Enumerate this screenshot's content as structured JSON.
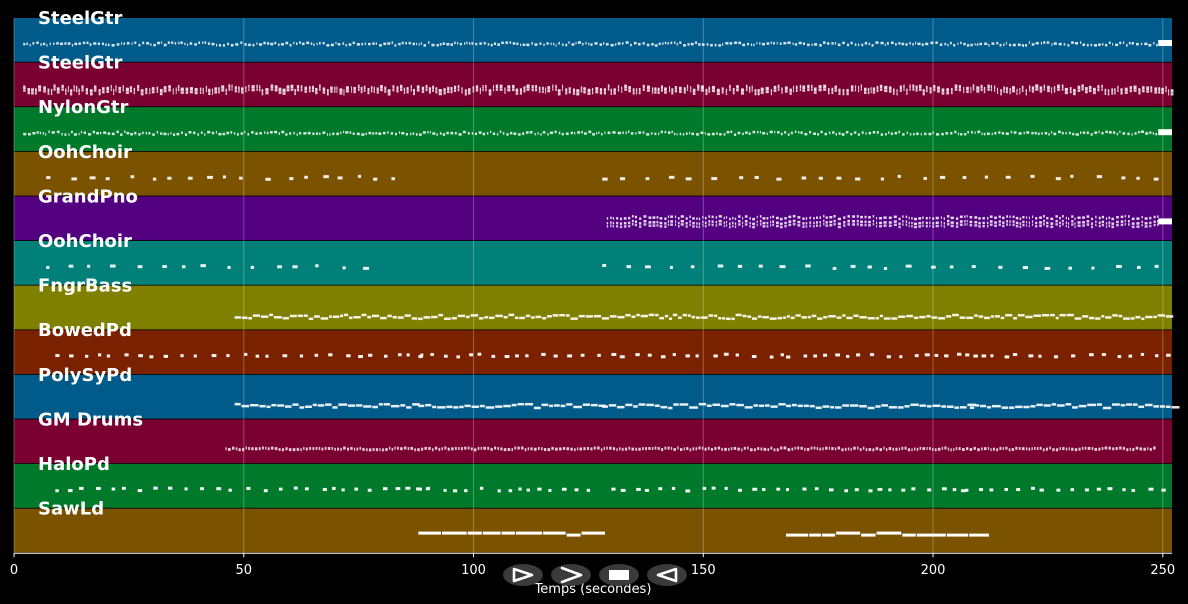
{
  "chart_data": {
    "type": "piano-roll",
    "xlabel": "Temps (secondes)",
    "xlim": [
      0,
      252
    ],
    "xticks": [
      0,
      50,
      100,
      150,
      200,
      250
    ],
    "grid": true,
    "tracks": [
      {
        "name": "SteelGtr",
        "color": "#005a8a",
        "pattern": "dense-small",
        "segments": [
          [
            2,
            249
          ]
        ],
        "end_block": true
      },
      {
        "name": "SteelGtr",
        "color": "#7a0032",
        "pattern": "dense-thick",
        "segments": [
          [
            2,
            252
          ]
        ]
      },
      {
        "name": "NylonGtr",
        "color": "#007a2a",
        "pattern": "dense-small",
        "segments": [
          [
            2,
            249
          ]
        ],
        "end_block": true
      },
      {
        "name": "OohChoir",
        "color": "#7a5200",
        "pattern": "sparse",
        "segments": [
          [
            7,
            84
          ],
          [
            128,
            250
          ]
        ]
      },
      {
        "name": "GrandPno",
        "color": "#520080",
        "pattern": "dense-double",
        "segments": [
          [
            129,
            249
          ]
        ],
        "end_block": true
      },
      {
        "name": "OohChoir",
        "color": "#008078",
        "pattern": "sparse",
        "segments": [
          [
            7,
            80
          ],
          [
            128,
            250
          ]
        ]
      },
      {
        "name": "FngrBass",
        "color": "#808000",
        "pattern": "bass",
        "segments": [
          [
            48,
            252
          ]
        ]
      },
      {
        "name": "BowedPd",
        "color": "#7a2200",
        "pattern": "pad",
        "segments": [
          [
            9,
            90
          ],
          [
            88,
            128
          ],
          [
            130,
            168
          ],
          [
            168,
            207
          ],
          [
            207,
            252
          ]
        ]
      },
      {
        "name": "PolySyPd",
        "color": "#005a8a",
        "pattern": "poly",
        "segments": [
          [
            48,
            88
          ],
          [
            88,
            128
          ],
          [
            128,
            168
          ],
          [
            168,
            208
          ],
          [
            208,
            252
          ]
        ]
      },
      {
        "name": "GM Drums",
        "color": "#7a0032",
        "pattern": "drums",
        "segments": [
          [
            46,
            248
          ]
        ]
      },
      {
        "name": "HaloPd",
        "color": "#007a2a",
        "pattern": "pad",
        "segments": [
          [
            9,
            90
          ],
          [
            88,
            128
          ],
          [
            130,
            168
          ],
          [
            168,
            207
          ],
          [
            207,
            252
          ]
        ]
      },
      {
        "name": "SawLd",
        "color": "#7a5200",
        "pattern": "lead",
        "segments": [
          [
            88,
            128
          ],
          [
            168,
            208
          ]
        ]
      }
    ]
  },
  "controls": [
    {
      "name": "play-forward",
      "icon": "play-outline-icon"
    },
    {
      "name": "fast-forward",
      "icon": "chevron-right-icon"
    },
    {
      "name": "stop",
      "icon": "stop-icon"
    },
    {
      "name": "play-backward",
      "icon": "play-backward-icon"
    }
  ]
}
